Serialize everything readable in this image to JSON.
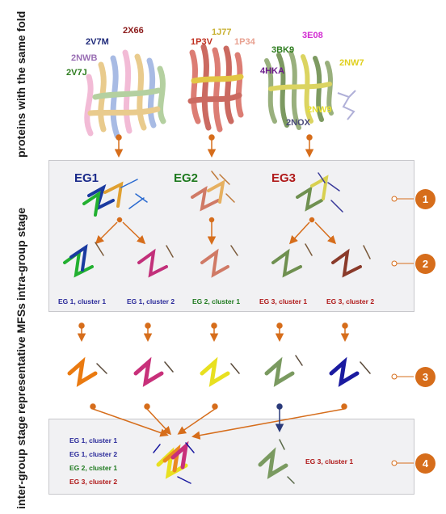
{
  "side_labels": {
    "proteins": "proteins with the same fold",
    "intra": "intra-group stage",
    "representative": "representative MFSs",
    "inter": "inter-group stage"
  },
  "pdb_labels": {
    "g1": [
      {
        "text": "2X66",
        "color": "#8b1a1a"
      },
      {
        "text": "2V7M",
        "color": "#1f2a7a"
      },
      {
        "text": "2NWB",
        "color": "#9a6fb4"
      },
      {
        "text": "2V7J",
        "color": "#2e7d1f"
      }
    ],
    "g2": [
      {
        "text": "1J77",
        "color": "#c8b030"
      },
      {
        "text": "1P3V",
        "color": "#c03020"
      },
      {
        "text": "1P34",
        "color": "#e8a090"
      }
    ],
    "g3": [
      {
        "text": "3E08",
        "color": "#d22ad2"
      },
      {
        "text": "3BK9",
        "color": "#2e7d1f"
      },
      {
        "text": "2NW7",
        "color": "#e0d020"
      },
      {
        "text": "4HKA",
        "color": "#6a1a8a"
      },
      {
        "text": "2NW9",
        "color": "#e8e030"
      },
      {
        "text": "2NOX",
        "color": "#4a4a7a"
      }
    ]
  },
  "groups": [
    {
      "text": "EG1",
      "color": "#1a2a8a"
    },
    {
      "text": "EG2",
      "color": "#1f7a1f"
    },
    {
      "text": "EG3",
      "color": "#b01a1a"
    }
  ],
  "clusters": [
    {
      "text": "EG 1, cluster 1",
      "color": "#2a2a9a"
    },
    {
      "text": "EG 1, cluster 2",
      "color": "#2a2a9a"
    },
    {
      "text": "EG 2, cluster 1",
      "color": "#1f7a1f"
    },
    {
      "text": "EG 3, cluster 1",
      "color": "#b01a1a"
    },
    {
      "text": "EG 3, cluster 2",
      "color": "#b01a1a"
    }
  ],
  "inter_list": [
    {
      "text": "EG 1, cluster 1",
      "color": "#2a2a9a"
    },
    {
      "text": "EG 1, cluster 2",
      "color": "#2a2a9a"
    },
    {
      "text": "EG 2, cluster 1",
      "color": "#1f7a1f"
    },
    {
      "text": "EG 3, cluster 2",
      "color": "#b01a1a"
    }
  ],
  "inter_right": {
    "text": "EG 3, cluster 1",
    "color": "#b01a1a"
  },
  "steps": [
    "1",
    "2",
    "3",
    "4"
  ],
  "colors": {
    "accent": "#d66d1b",
    "panel": "#f1f1f3",
    "connector": "#2a3a7a"
  }
}
